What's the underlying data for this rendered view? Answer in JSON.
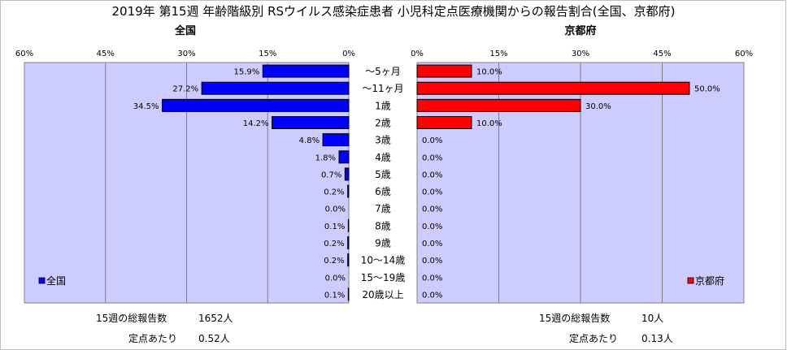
{
  "title": "2019年 第15週 年齢階級別 RSウイルス感染症患者 小児科定点医療機関からの報告割合(全国、京都府)",
  "chart_data": {
    "type": "bar",
    "orientation": "horizontal-butterfly",
    "categories": [
      "～5ヶ月",
      "～11ヶ月",
      "1歳",
      "2歳",
      "3歳",
      "4歳",
      "5歳",
      "6歳",
      "7歳",
      "8歳",
      "9歳",
      "10～14歳",
      "15～19歳",
      "20歳以上"
    ],
    "xlim": [
      0,
      60
    ],
    "ticks": [
      "60%",
      "45%",
      "30%",
      "15%",
      "0%",
      "0%",
      "15%",
      "30%",
      "45%",
      "60%"
    ],
    "grid": true,
    "series": [
      {
        "name": "全国",
        "panel_title": "全国",
        "color": "#0000ff",
        "values": [
          15.9,
          27.2,
          34.5,
          14.2,
          4.8,
          1.8,
          0.7,
          0.2,
          0.0,
          0.1,
          0.2,
          0.2,
          0.0,
          0.1
        ],
        "labels": [
          "15.9%",
          "27.2%",
          "34.5%",
          "14.2%",
          "4.8%",
          "1.8%",
          "0.7%",
          "0.2%",
          "0.0%",
          "0.1%",
          "0.2%",
          "0.2%",
          "0.0%",
          "0.1%"
        ],
        "legend_position": "bottom-left"
      },
      {
        "name": "京都府",
        "panel_title": "京都府",
        "color": "#ff0000",
        "values": [
          10.0,
          50.0,
          30.0,
          10.0,
          0,
          0,
          0,
          0,
          0,
          0,
          0,
          0,
          0,
          0
        ],
        "labels": [
          "10.0%",
          "50.0%",
          "30.0%",
          "10.0%",
          "0.0%",
          "0.0%",
          "0.0%",
          "0.0%",
          "0.0%",
          "0.0%",
          "0.0%",
          "0.0%",
          "0.0%",
          "0.0%"
        ],
        "legend_position": "bottom-right"
      }
    ]
  },
  "footer": {
    "left": {
      "total_label": "15週の総報告数",
      "total_value": "1652人",
      "per_label": "定点あたり",
      "per_value": "0.52人"
    },
    "right": {
      "total_label": "15週の総報告数",
      "total_value": "10人",
      "per_label": "定点あたり",
      "per_value": "0.13人"
    }
  },
  "colors": {
    "plot_bg": "#ccccff",
    "grid": "#7f7f7f"
  }
}
